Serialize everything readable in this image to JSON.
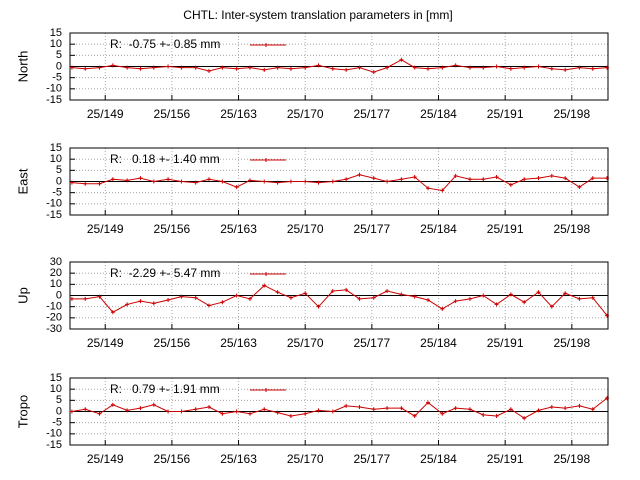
{
  "title": "CHTL: Inter-system translation parameters in [mm]",
  "chart_data": [
    {
      "type": "line",
      "ylabel": "North",
      "x": [
        145.5,
        146.9,
        148.4,
        149.8,
        151.3,
        152.7,
        154.1,
        155.6,
        157.0,
        158.5,
        159.9,
        161.3,
        162.8,
        164.2,
        165.7,
        167.1,
        168.5,
        170.0,
        171.4,
        172.9,
        174.3,
        175.7,
        177.2,
        178.6,
        180.1,
        181.5,
        182.9,
        184.4,
        185.8,
        187.3,
        188.7,
        190.1,
        191.6,
        193.0,
        194.5,
        195.9,
        197.3,
        198.8,
        200.2,
        201.7
      ],
      "series": [
        {
          "name": "R:  -0.75 +- 0.85 mm",
          "color": "#cc0000",
          "values": [
            -0.5,
            -1,
            -0.5,
            0.5,
            -0.5,
            -1,
            -0.5,
            0,
            -0.5,
            -0.5,
            -2,
            -0.5,
            -1,
            -0.5,
            -1.5,
            -0.5,
            -1,
            -0.5,
            0.5,
            -1,
            -1.5,
            -0.5,
            -2.5,
            -0.5,
            3,
            -0.5,
            -1,
            -0.5,
            0.5,
            -0.5,
            -0.5,
            0,
            -1,
            -0.5,
            0,
            -1,
            -1.5,
            -0.5,
            -1,
            -0.5
          ]
        }
      ],
      "xlim": [
        145.3,
        201.8
      ],
      "xticks": [
        {
          "value": 149,
          "label": "25/149"
        },
        {
          "value": 156,
          "label": "25/156"
        },
        {
          "value": 163,
          "label": "25/163"
        },
        {
          "value": 170,
          "label": "25/170"
        },
        {
          "value": 177,
          "label": "25/177"
        },
        {
          "value": 184,
          "label": "25/184"
        },
        {
          "value": 191,
          "label": "25/191"
        },
        {
          "value": 198,
          "label": "25/198"
        }
      ],
      "ylim": [
        -15,
        15
      ],
      "yticks": [
        -15,
        -10,
        -5,
        0,
        5,
        10,
        15
      ],
      "grid": true,
      "zeroaxis": true
    },
    {
      "type": "line",
      "ylabel": "East",
      "x": [
        145.5,
        146.9,
        148.4,
        149.8,
        151.3,
        152.7,
        154.1,
        155.6,
        157.0,
        158.5,
        159.9,
        161.3,
        162.8,
        164.2,
        165.7,
        167.1,
        168.5,
        170.0,
        171.4,
        172.9,
        174.3,
        175.7,
        177.2,
        178.6,
        180.1,
        181.5,
        182.9,
        184.4,
        185.8,
        187.3,
        188.7,
        190.1,
        191.6,
        193.0,
        194.5,
        195.9,
        197.3,
        198.8,
        200.2,
        201.7
      ],
      "series": [
        {
          "name": "R:   0.18 +- 1.40 mm",
          "color": "#cc0000",
          "values": [
            -0.5,
            -1,
            -1,
            1,
            0.5,
            1.5,
            0,
            1,
            0,
            -0.5,
            1,
            0,
            -2.5,
            0.5,
            0,
            -0.5,
            0,
            0,
            -0.5,
            0,
            1,
            3,
            1.5,
            0,
            1,
            2,
            -3,
            -4,
            2.5,
            1,
            1,
            2,
            -1.5,
            1,
            1.5,
            2.5,
            1.5,
            -2.5,
            1.5,
            1.5
          ]
        }
      ],
      "xlim": [
        145.3,
        201.8
      ],
      "xticks": [
        {
          "value": 149,
          "label": "25/149"
        },
        {
          "value": 156,
          "label": "25/156"
        },
        {
          "value": 163,
          "label": "25/163"
        },
        {
          "value": 170,
          "label": "25/170"
        },
        {
          "value": 177,
          "label": "25/177"
        },
        {
          "value": 184,
          "label": "25/184"
        },
        {
          "value": 191,
          "label": "25/191"
        },
        {
          "value": 198,
          "label": "25/198"
        }
      ],
      "ylim": [
        -15,
        15
      ],
      "yticks": [
        -15,
        -10,
        -5,
        0,
        5,
        10,
        15
      ],
      "grid": true,
      "zeroaxis": true
    },
    {
      "type": "line",
      "ylabel": "Up",
      "x": [
        145.5,
        146.9,
        148.4,
        149.8,
        151.3,
        152.7,
        154.1,
        155.6,
        157.0,
        158.5,
        159.9,
        161.3,
        162.8,
        164.2,
        165.7,
        167.1,
        168.5,
        170.0,
        171.4,
        172.9,
        174.3,
        175.7,
        177.2,
        178.6,
        180.1,
        181.5,
        182.9,
        184.4,
        185.8,
        187.3,
        188.7,
        190.1,
        191.6,
        193.0,
        194.5,
        195.9,
        197.3,
        198.8,
        200.2,
        201.7
      ],
      "series": [
        {
          "name": "R:  -2.29 +- 5.47 mm",
          "color": "#cc0000",
          "values": [
            -3,
            -3,
            -1,
            -15,
            -8,
            -5,
            -7,
            -4,
            -1,
            -2,
            -9,
            -6,
            0,
            -3,
            9,
            3,
            -2,
            2,
            -10,
            4,
            5,
            -3,
            -2,
            4,
            1,
            -1,
            -4,
            -12,
            -5,
            -3,
            0,
            -8,
            1,
            -6,
            3,
            -10,
            2,
            -3,
            -2,
            -18
          ]
        }
      ],
      "xlim": [
        145.3,
        201.8
      ],
      "xticks": [
        {
          "value": 149,
          "label": "25/149"
        },
        {
          "value": 156,
          "label": "25/156"
        },
        {
          "value": 163,
          "label": "25/163"
        },
        {
          "value": 170,
          "label": "25/170"
        },
        {
          "value": 177,
          "label": "25/177"
        },
        {
          "value": 184,
          "label": "25/184"
        },
        {
          "value": 191,
          "label": "25/191"
        },
        {
          "value": 198,
          "label": "25/198"
        }
      ],
      "ylim": [
        -30,
        30
      ],
      "yticks": [
        -30,
        -20,
        -10,
        0,
        10,
        20,
        30
      ],
      "grid": true,
      "zeroaxis": true
    },
    {
      "type": "line",
      "ylabel": "Tropo",
      "x": [
        145.5,
        146.9,
        148.4,
        149.8,
        151.3,
        152.7,
        154.1,
        155.6,
        157.0,
        158.5,
        159.9,
        161.3,
        162.8,
        164.2,
        165.7,
        167.1,
        168.5,
        170.0,
        171.4,
        172.9,
        174.3,
        175.7,
        177.2,
        178.6,
        180.1,
        181.5,
        182.9,
        184.4,
        185.8,
        187.3,
        188.7,
        190.1,
        191.6,
        193.0,
        194.5,
        195.9,
        197.3,
        198.8,
        200.2,
        201.7
      ],
      "series": [
        {
          "name": "R:   0.79 +- 1.91 mm",
          "color": "#cc0000",
          "values": [
            0,
            1,
            -1,
            3,
            0.5,
            1.5,
            3,
            0,
            0,
            1,
            2,
            -1,
            0,
            -1,
            1,
            -0.5,
            -2,
            -1,
            0.5,
            0,
            2.5,
            2,
            1,
            1.5,
            1.5,
            -2,
            4,
            -1,
            1.5,
            1,
            -1.5,
            -2,
            1,
            -3,
            0.5,
            2,
            1.5,
            2.5,
            1,
            6
          ]
        }
      ],
      "xlim": [
        145.3,
        201.8
      ],
      "xticks": [
        {
          "value": 149,
          "label": "25/149"
        },
        {
          "value": 156,
          "label": "25/156"
        },
        {
          "value": 163,
          "label": "25/163"
        },
        {
          "value": 170,
          "label": "25/170"
        },
        {
          "value": 177,
          "label": "25/177"
        },
        {
          "value": 184,
          "label": "25/184"
        },
        {
          "value": 191,
          "label": "25/191"
        },
        {
          "value": 198,
          "label": "25/198"
        }
      ],
      "ylim": [
        -15,
        15
      ],
      "yticks": [
        -15,
        -10,
        -5,
        0,
        5,
        10,
        15
      ],
      "grid": true,
      "zeroaxis": true
    }
  ]
}
